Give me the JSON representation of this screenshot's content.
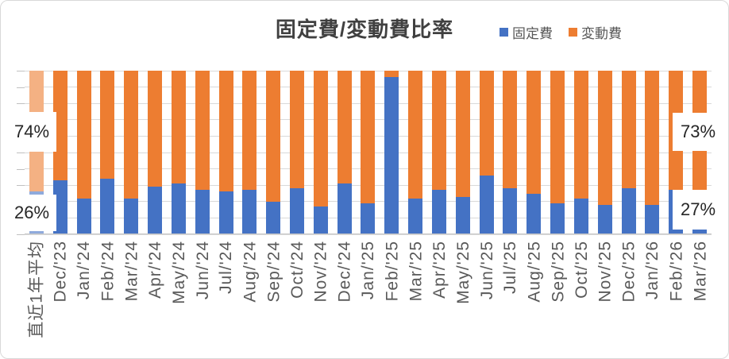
{
  "chart_data": {
    "type": "bar",
    "variant": "100%-stacked-column",
    "title": "固定費/変動費比率",
    "categories": [
      "直近1年平均",
      "Dec/'23",
      "Jan/'24",
      "Feb/'24",
      "Mar/'24",
      "Apr/'24",
      "May/'24",
      "Jun/'24",
      "Jul/'24",
      "Aug/'24",
      "Sep/'24",
      "Oct/'24",
      "Nov/'24",
      "Dec/'24",
      "Jan/'25",
      "Feb/'25",
      "Mar/'25",
      "Apr/'25",
      "May/'25",
      "Jun/'25",
      "Jul/'25",
      "Aug/'25",
      "Sep/'25",
      "Oct/'25",
      "Nov/'25",
      "Dec/'25",
      "Jan/'26",
      "Feb/'26",
      "Mar/'26"
    ],
    "series": [
      {
        "name": "固定費",
        "color": "#4472C4",
        "light_color": "#8FAADC",
        "values": [
          26,
          33,
          22,
          34,
          22,
          29,
          31,
          27,
          26,
          27,
          20,
          28,
          17,
          31,
          19,
          96,
          22,
          27,
          23,
          36,
          28,
          25,
          19,
          22,
          18,
          28,
          18,
          27,
          27
        ]
      },
      {
        "name": "変動費",
        "color": "#ED7D31",
        "light_color": "#F4B183",
        "values": [
          74,
          67,
          78,
          66,
          78,
          71,
          69,
          73,
          74,
          73,
          80,
          72,
          83,
          69,
          81,
          4,
          78,
          73,
          77,
          64,
          72,
          75,
          81,
          78,
          82,
          72,
          82,
          73,
          73
        ]
      }
    ],
    "highlighted_category_index": 0,
    "data_labels": [
      {
        "category": "直近1年平均",
        "series": "変動費",
        "text": "74%",
        "position": "left-top"
      },
      {
        "category": "直近1年平均",
        "series": "固定費",
        "text": "26%",
        "position": "left-bottom"
      },
      {
        "category": "Mar/'26",
        "series": "変動費",
        "text": "73%",
        "position": "right-top"
      },
      {
        "category": "Mar/'26",
        "series": "固定費",
        "text": "27%",
        "position": "right-bottom"
      }
    ],
    "ylim": [
      0,
      100
    ],
    "gridlines": true,
    "gridline_step_percent": 10,
    "legend_position": "top-right"
  },
  "colors": {
    "gridline": "#D9D9D9",
    "axis_line": "#C6C6C6",
    "border": "#D9D9D9",
    "title_text": "#404040",
    "axis_text": "#595959",
    "label_text": "#262626"
  }
}
